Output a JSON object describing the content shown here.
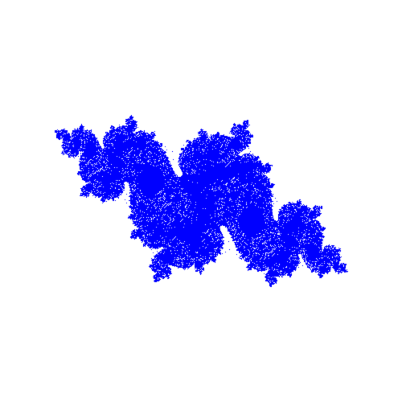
{
  "figure": {
    "kind": "julia-set-fractal",
    "background_color": "#ffffff",
    "point_color": "#0000ff",
    "c_real": -0.75,
    "c_imag": 0.11,
    "view_real_range": [
      -1.85,
      1.85
    ],
    "view_imag_range": [
      -1.85,
      1.85
    ],
    "orientation_degrees": -28
  }
}
